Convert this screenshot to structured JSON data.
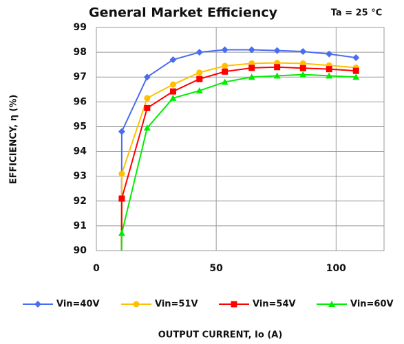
{
  "chart_data": {
    "type": "line",
    "title": "General Market Efficiency",
    "annotation": "Ta = 25 °C",
    "x_label": "OUTPUT CURRENT, Io (A)",
    "y_label": "EFFICIENCY, η (%)",
    "x": [
      10.5,
      10.6,
      21.2,
      32,
      43,
      53.6,
      64.8,
      75.4,
      86.2,
      97.1,
      108.3
    ],
    "series": [
      {
        "name": "Vin=40V",
        "color": "#4a6cf0",
        "marker": "diamond",
        "values": [
          90,
          94.8,
          97.0,
          97.7,
          98.0,
          98.1,
          98.1,
          98.07,
          98.03,
          97.93,
          97.78
        ]
      },
      {
        "name": "Vin=51V",
        "color": "#ffc000",
        "marker": "circle",
        "values": [
          90,
          93.1,
          96.15,
          96.7,
          97.18,
          97.45,
          97.55,
          97.57,
          97.55,
          97.47,
          97.38
        ]
      },
      {
        "name": "Vin=54V",
        "color": "#ff0000",
        "marker": "square",
        "values": [
          90,
          92.1,
          95.75,
          96.42,
          96.92,
          97.22,
          97.37,
          97.4,
          97.36,
          97.32,
          97.25
        ]
      },
      {
        "name": "Vin=60V",
        "color": "#00ee00",
        "marker": "triangle",
        "values": [
          90,
          90.7,
          94.95,
          96.15,
          96.45,
          96.8,
          97.0,
          97.05,
          97.1,
          97.05,
          97.0
        ]
      }
    ],
    "xlim": [
      0,
      120
    ],
    "xticks": [
      0,
      50,
      100
    ],
    "ylim": [
      90,
      99
    ],
    "yticks": [
      90,
      91,
      92,
      93,
      94,
      95,
      96,
      97,
      98,
      99
    ],
    "grid": true,
    "legend": "bottom"
  }
}
